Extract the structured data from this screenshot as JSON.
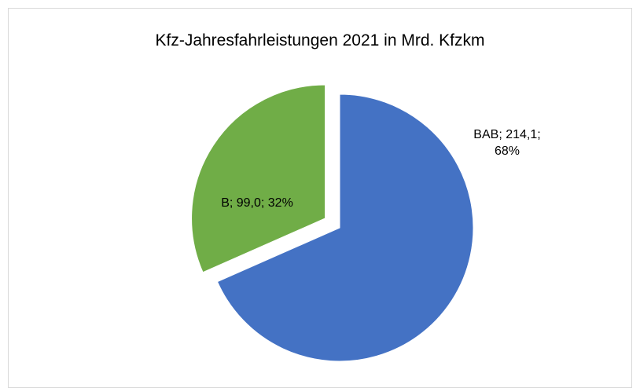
{
  "chart_data": {
    "type": "pie",
    "title": "Kfz-Jahresfahrleistungen 2021 in Mrd. Kfzkm",
    "categories": [
      "BAB",
      "B"
    ],
    "values": [
      214.1,
      99.0
    ],
    "value_labels": [
      "BAB; 214,1; 68%",
      "B; 99,0; 32%"
    ],
    "colors": [
      "#4472c4",
      "#70ad47"
    ],
    "exploded": [
      false,
      true
    ]
  }
}
